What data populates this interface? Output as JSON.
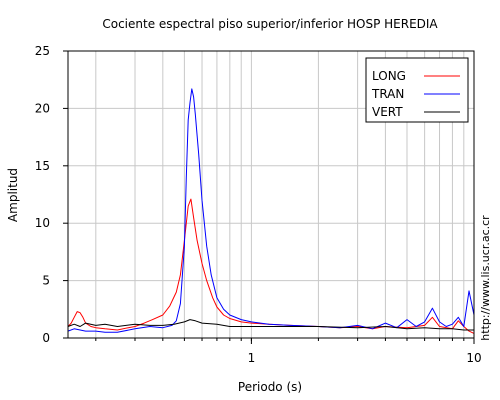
{
  "chart_data": {
    "type": "line",
    "title": "Cociente espectral piso superior/inferior  HOSP HEREDIA",
    "xlabel": "Periodo (s)",
    "ylabel": "Amplitud",
    "xscale": "log",
    "xlim": [
      0.15,
      10
    ],
    "ylim": [
      0,
      25
    ],
    "yticks": [
      0,
      5,
      10,
      15,
      20,
      25
    ],
    "xticks": [
      1,
      10
    ],
    "grid": true,
    "legend_position": "top-right",
    "watermark": "http://www.lis.ucr.ac.cr",
    "series": [
      {
        "name": "LONG",
        "color": "#ff0000",
        "points": [
          [
            0.15,
            1.0
          ],
          [
            0.155,
            1.3
          ],
          [
            0.16,
            1.8
          ],
          [
            0.165,
            2.3
          ],
          [
            0.17,
            2.2
          ],
          [
            0.175,
            1.8
          ],
          [
            0.18,
            1.3
          ],
          [
            0.19,
            1.0
          ],
          [
            0.2,
            0.9
          ],
          [
            0.22,
            0.8
          ],
          [
            0.25,
            0.7
          ],
          [
            0.28,
            0.9
          ],
          [
            0.3,
            1.0
          ],
          [
            0.33,
            1.3
          ],
          [
            0.36,
            1.6
          ],
          [
            0.4,
            2.0
          ],
          [
            0.43,
            2.8
          ],
          [
            0.46,
            4.0
          ],
          [
            0.48,
            5.5
          ],
          [
            0.5,
            8.5
          ],
          [
            0.52,
            11.5
          ],
          [
            0.535,
            12.1
          ],
          [
            0.55,
            10.5
          ],
          [
            0.57,
            8.5
          ],
          [
            0.6,
            6.5
          ],
          [
            0.63,
            5.0
          ],
          [
            0.67,
            3.5
          ],
          [
            0.7,
            2.7
          ],
          [
            0.75,
            2.0
          ],
          [
            0.8,
            1.7
          ],
          [
            0.9,
            1.4
          ],
          [
            1.0,
            1.3
          ],
          [
            1.2,
            1.2
          ],
          [
            1.5,
            1.1
          ],
          [
            2.0,
            1.0
          ],
          [
            2.5,
            0.9
          ],
          [
            3.0,
            1.0
          ],
          [
            3.5,
            0.8
          ],
          [
            4.0,
            1.0
          ],
          [
            5.0,
            0.9
          ],
          [
            6.0,
            1.1
          ],
          [
            6.5,
            1.8
          ],
          [
            7.0,
            1.0
          ],
          [
            8.0,
            0.8
          ],
          [
            8.5,
            1.5
          ],
          [
            9.0,
            1.0
          ],
          [
            9.5,
            0.6
          ],
          [
            10.0,
            0.4
          ]
        ]
      },
      {
        "name": "TRAN",
        "color": "#0000ff",
        "points": [
          [
            0.15,
            0.6
          ],
          [
            0.16,
            0.8
          ],
          [
            0.17,
            0.7
          ],
          [
            0.18,
            0.6
          ],
          [
            0.2,
            0.6
          ],
          [
            0.22,
            0.5
          ],
          [
            0.25,
            0.5
          ],
          [
            0.3,
            0.8
          ],
          [
            0.35,
            1.0
          ],
          [
            0.4,
            0.9
          ],
          [
            0.44,
            1.1
          ],
          [
            0.46,
            1.5
          ],
          [
            0.48,
            3.0
          ],
          [
            0.5,
            8.0
          ],
          [
            0.51,
            14.0
          ],
          [
            0.52,
            19.0
          ],
          [
            0.53,
            20.5
          ],
          [
            0.54,
            21.7
          ],
          [
            0.55,
            21.0
          ],
          [
            0.56,
            19.5
          ],
          [
            0.58,
            16.0
          ],
          [
            0.6,
            12.0
          ],
          [
            0.63,
            8.0
          ],
          [
            0.66,
            5.5
          ],
          [
            0.7,
            3.5
          ],
          [
            0.75,
            2.5
          ],
          [
            0.8,
            2.0
          ],
          [
            0.9,
            1.6
          ],
          [
            1.0,
            1.4
          ],
          [
            1.2,
            1.2
          ],
          [
            1.5,
            1.1
          ],
          [
            2.0,
            1.0
          ],
          [
            2.5,
            0.9
          ],
          [
            3.0,
            1.1
          ],
          [
            3.5,
            0.8
          ],
          [
            4.0,
            1.3
          ],
          [
            4.5,
            0.9
          ],
          [
            5.0,
            1.6
          ],
          [
            5.5,
            1.0
          ],
          [
            6.0,
            1.4
          ],
          [
            6.5,
            2.6
          ],
          [
            7.0,
            1.4
          ],
          [
            7.5,
            1.0
          ],
          [
            8.0,
            1.2
          ],
          [
            8.5,
            1.8
          ],
          [
            9.0,
            1.0
          ],
          [
            9.5,
            4.1
          ],
          [
            10.0,
            2.0
          ]
        ]
      },
      {
        "name": "VERT",
        "color": "#000000",
        "points": [
          [
            0.15,
            1.0
          ],
          [
            0.16,
            1.2
          ],
          [
            0.17,
            1.0
          ],
          [
            0.18,
            1.3
          ],
          [
            0.2,
            1.1
          ],
          [
            0.22,
            1.2
          ],
          [
            0.25,
            1.0
          ],
          [
            0.3,
            1.2
          ],
          [
            0.35,
            1.1
          ],
          [
            0.4,
            1.1
          ],
          [
            0.45,
            1.2
          ],
          [
            0.5,
            1.4
          ],
          [
            0.53,
            1.6
          ],
          [
            0.56,
            1.5
          ],
          [
            0.6,
            1.3
          ],
          [
            0.7,
            1.2
          ],
          [
            0.8,
            1.0
          ],
          [
            1.0,
            1.0
          ],
          [
            1.5,
            1.0
          ],
          [
            2.0,
            1.0
          ],
          [
            3.0,
            0.9
          ],
          [
            4.0,
            1.0
          ],
          [
            5.0,
            0.8
          ],
          [
            6.0,
            0.9
          ],
          [
            7.0,
            0.8
          ],
          [
            8.0,
            0.8
          ],
          [
            9.0,
            0.7
          ],
          [
            10.0,
            0.7
          ]
        ]
      }
    ]
  }
}
